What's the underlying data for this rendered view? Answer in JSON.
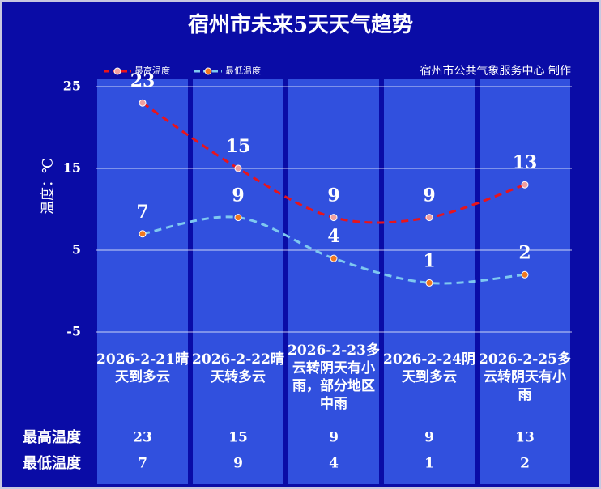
{
  "chart_data": {
    "type": "line",
    "title": "宿州市未来5天天气趋势",
    "source": "宿州市公共气象服务中心 制作",
    "y_label": "温度：℃",
    "categories": [
      "2026-2-21晴天到多云",
      "2026-2-22晴天转多云",
      "2026-2-23多云转阴天有小雨，部分地区中雨",
      "2026-2-24阴天到多云",
      "2026-2-25多云转阴天有小雨"
    ],
    "series": [
      {
        "name": "最高温度",
        "color": "#e8141c",
        "label_color": "#ffffff",
        "values": [
          23,
          15,
          9,
          9,
          13
        ]
      },
      {
        "name": "最低温度",
        "color": "#7ec8f0",
        "label_color": "#f5a623",
        "values": [
          7,
          9,
          4,
          1,
          2
        ]
      }
    ],
    "ylim": [
      -5,
      25
    ],
    "yticks": [
      -5,
      5,
      15,
      25
    ],
    "grid": true
  }
}
